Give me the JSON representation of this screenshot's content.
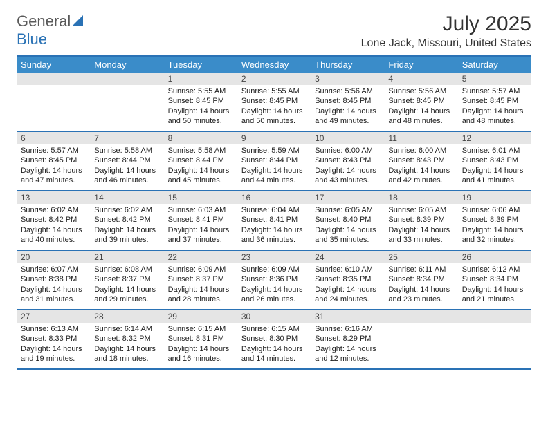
{
  "logo": {
    "text1": "General",
    "text2": "Blue",
    "icon_color": "#2a72b5",
    "text1_color": "#5a5a5a"
  },
  "title": "July 2025",
  "location": "Lone Jack, Missouri, United States",
  "accent_color": "#2a72b5",
  "header_bg": "#3a8cc9",
  "daynum_bg": "#e5e5e5",
  "dow": [
    "Sunday",
    "Monday",
    "Tuesday",
    "Wednesday",
    "Thursday",
    "Friday",
    "Saturday"
  ],
  "weeks": [
    [
      null,
      null,
      {
        "n": "1",
        "sr": "5:55 AM",
        "ss": "8:45 PM",
        "dl": "14 hours and 50 minutes."
      },
      {
        "n": "2",
        "sr": "5:55 AM",
        "ss": "8:45 PM",
        "dl": "14 hours and 50 minutes."
      },
      {
        "n": "3",
        "sr": "5:56 AM",
        "ss": "8:45 PM",
        "dl": "14 hours and 49 minutes."
      },
      {
        "n": "4",
        "sr": "5:56 AM",
        "ss": "8:45 PM",
        "dl": "14 hours and 48 minutes."
      },
      {
        "n": "5",
        "sr": "5:57 AM",
        "ss": "8:45 PM",
        "dl": "14 hours and 48 minutes."
      }
    ],
    [
      {
        "n": "6",
        "sr": "5:57 AM",
        "ss": "8:45 PM",
        "dl": "14 hours and 47 minutes."
      },
      {
        "n": "7",
        "sr": "5:58 AM",
        "ss": "8:44 PM",
        "dl": "14 hours and 46 minutes."
      },
      {
        "n": "8",
        "sr": "5:58 AM",
        "ss": "8:44 PM",
        "dl": "14 hours and 45 minutes."
      },
      {
        "n": "9",
        "sr": "5:59 AM",
        "ss": "8:44 PM",
        "dl": "14 hours and 44 minutes."
      },
      {
        "n": "10",
        "sr": "6:00 AM",
        "ss": "8:43 PM",
        "dl": "14 hours and 43 minutes."
      },
      {
        "n": "11",
        "sr": "6:00 AM",
        "ss": "8:43 PM",
        "dl": "14 hours and 42 minutes."
      },
      {
        "n": "12",
        "sr": "6:01 AM",
        "ss": "8:43 PM",
        "dl": "14 hours and 41 minutes."
      }
    ],
    [
      {
        "n": "13",
        "sr": "6:02 AM",
        "ss": "8:42 PM",
        "dl": "14 hours and 40 minutes."
      },
      {
        "n": "14",
        "sr": "6:02 AM",
        "ss": "8:42 PM",
        "dl": "14 hours and 39 minutes."
      },
      {
        "n": "15",
        "sr": "6:03 AM",
        "ss": "8:41 PM",
        "dl": "14 hours and 37 minutes."
      },
      {
        "n": "16",
        "sr": "6:04 AM",
        "ss": "8:41 PM",
        "dl": "14 hours and 36 minutes."
      },
      {
        "n": "17",
        "sr": "6:05 AM",
        "ss": "8:40 PM",
        "dl": "14 hours and 35 minutes."
      },
      {
        "n": "18",
        "sr": "6:05 AM",
        "ss": "8:39 PM",
        "dl": "14 hours and 33 minutes."
      },
      {
        "n": "19",
        "sr": "6:06 AM",
        "ss": "8:39 PM",
        "dl": "14 hours and 32 minutes."
      }
    ],
    [
      {
        "n": "20",
        "sr": "6:07 AM",
        "ss": "8:38 PM",
        "dl": "14 hours and 31 minutes."
      },
      {
        "n": "21",
        "sr": "6:08 AM",
        "ss": "8:37 PM",
        "dl": "14 hours and 29 minutes."
      },
      {
        "n": "22",
        "sr": "6:09 AM",
        "ss": "8:37 PM",
        "dl": "14 hours and 28 minutes."
      },
      {
        "n": "23",
        "sr": "6:09 AM",
        "ss": "8:36 PM",
        "dl": "14 hours and 26 minutes."
      },
      {
        "n": "24",
        "sr": "6:10 AM",
        "ss": "8:35 PM",
        "dl": "14 hours and 24 minutes."
      },
      {
        "n": "25",
        "sr": "6:11 AM",
        "ss": "8:34 PM",
        "dl": "14 hours and 23 minutes."
      },
      {
        "n": "26",
        "sr": "6:12 AM",
        "ss": "8:34 PM",
        "dl": "14 hours and 21 minutes."
      }
    ],
    [
      {
        "n": "27",
        "sr": "6:13 AM",
        "ss": "8:33 PM",
        "dl": "14 hours and 19 minutes."
      },
      {
        "n": "28",
        "sr": "6:14 AM",
        "ss": "8:32 PM",
        "dl": "14 hours and 18 minutes."
      },
      {
        "n": "29",
        "sr": "6:15 AM",
        "ss": "8:31 PM",
        "dl": "14 hours and 16 minutes."
      },
      {
        "n": "30",
        "sr": "6:15 AM",
        "ss": "8:30 PM",
        "dl": "14 hours and 14 minutes."
      },
      {
        "n": "31",
        "sr": "6:16 AM",
        "ss": "8:29 PM",
        "dl": "14 hours and 12 minutes."
      },
      null,
      null
    ]
  ],
  "labels": {
    "sunrise": "Sunrise:",
    "sunset": "Sunset:",
    "daylight": "Daylight:"
  }
}
